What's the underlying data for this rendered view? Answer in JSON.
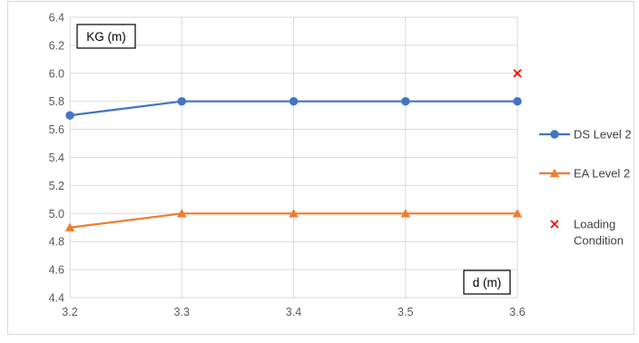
{
  "chart_data": {
    "type": "line",
    "x": [
      3.2,
      3.3,
      3.4,
      3.5,
      3.6
    ],
    "x_tick_labels": [
      "3.2",
      "3.3",
      "3.4",
      "3.5",
      "3.6"
    ],
    "xlim": [
      3.2,
      3.6
    ],
    "ylim": [
      4.4,
      6.4
    ],
    "y_ticks": [
      4.4,
      4.6,
      4.8,
      5.0,
      5.2,
      5.4,
      5.6,
      5.8,
      6.0,
      6.2,
      6.4
    ],
    "y_tick_labels": [
      "4.4",
      "4.6",
      "4.8",
      "5.0",
      "5.2",
      "5.4",
      "5.6",
      "5.8",
      "6.0",
      "6.2",
      "6.4"
    ],
    "ylabel": "KG (m)",
    "xlabel": "d (m)",
    "grid": true,
    "legend_position": "right",
    "series": [
      {
        "name": "DS Level 2",
        "color": "#4472C4",
        "marker": "circle",
        "x": [
          3.2,
          3.3,
          3.4,
          3.5,
          3.6
        ],
        "values": [
          5.7,
          5.8,
          5.8,
          5.8,
          5.8
        ]
      },
      {
        "name": "EA Level 2",
        "color": "#ED7D31",
        "marker": "triangle",
        "x": [
          3.2,
          3.3,
          3.4,
          3.5,
          3.6
        ],
        "values": [
          4.9,
          5.0,
          5.0,
          5.0,
          5.0
        ]
      },
      {
        "name": "Loading Condition",
        "name_lines": [
          "Loading",
          "Condition"
        ],
        "color": "#FF0000",
        "marker": "x",
        "x": [
          3.6
        ],
        "values": [
          6.0
        ]
      }
    ]
  }
}
